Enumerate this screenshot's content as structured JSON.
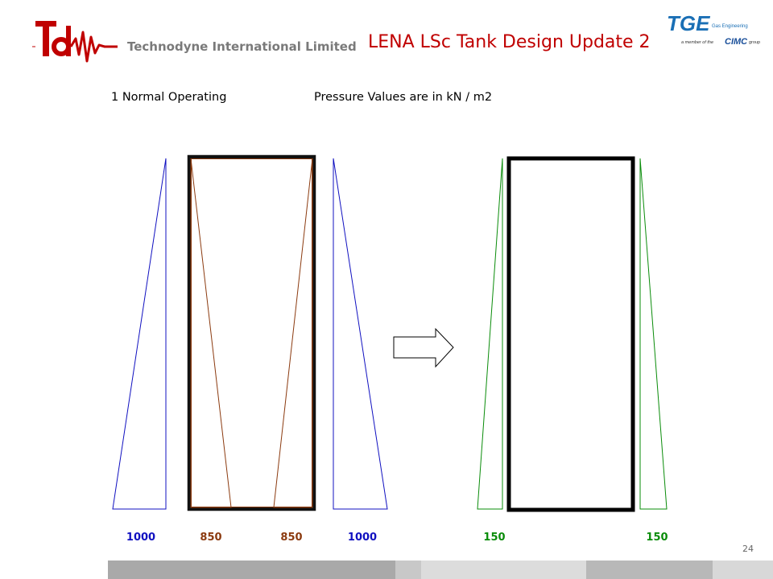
{
  "header": {
    "company_name": "Technodyne International Limited",
    "title": "LENA LSc Tank Design Update 2",
    "partner_logo": {
      "brand": "TGE",
      "subtitle": "Gas Engineering",
      "tagline_prefix": "a member of the",
      "group_name": "CIMC",
      "group_suffix": "group"
    }
  },
  "diagram": {
    "case_label": "1  Normal Operating",
    "units_label": "Pressure Values are in kN / m2",
    "before": {
      "values": [
        {
          "text": "1000",
          "color": "blue"
        },
        {
          "text": "850",
          "color": "brown"
        },
        {
          "text": "850",
          "color": "brown"
        },
        {
          "text": "1000",
          "color": "blue"
        }
      ]
    },
    "after": {
      "values": [
        {
          "text": "150",
          "color": "green"
        },
        {
          "text": "150",
          "color": "green"
        }
      ]
    }
  },
  "footer": {
    "page_number": "24"
  },
  "colors": {
    "title_red": "#c00000",
    "blue": "#1010c0",
    "brown": "#8b3a0f",
    "green": "#0a8c0a"
  }
}
